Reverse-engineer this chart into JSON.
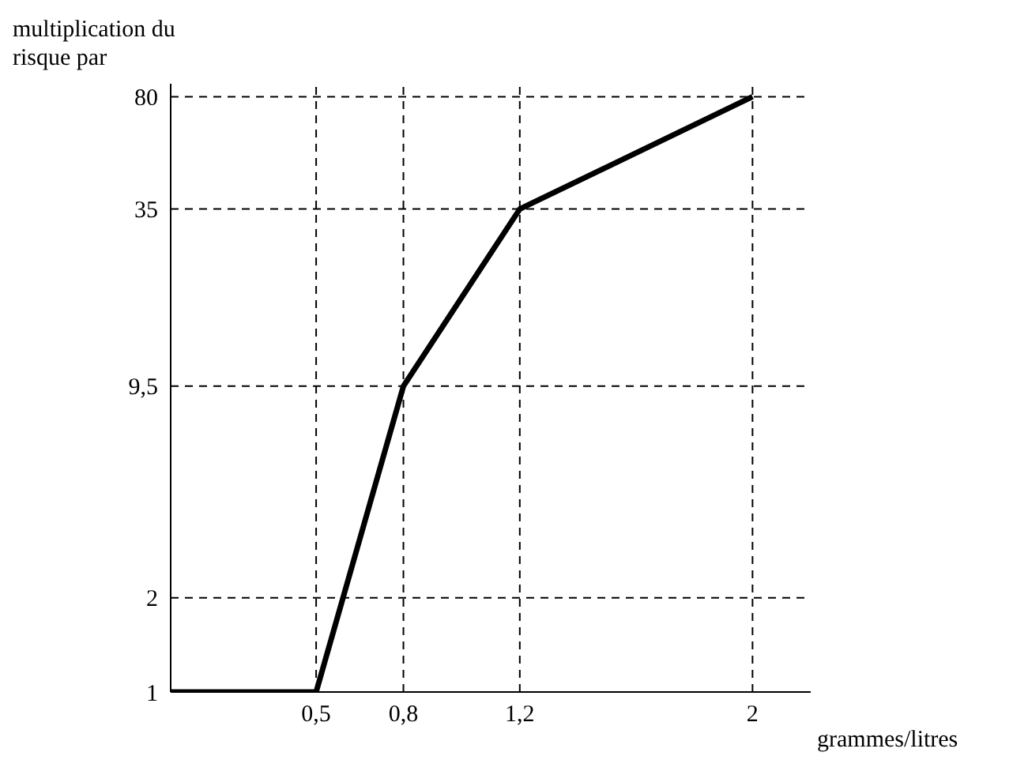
{
  "chart_data": {
    "type": "line",
    "ylabel": "multiplication du risque par",
    "xlabel": "grammes/litres",
    "x": [
      0,
      0.5,
      0.8,
      1.2,
      2
    ],
    "series": [
      {
        "color": "#000000",
        "values": [
          1,
          1,
          9.5,
          35,
          80
        ]
      }
    ],
    "xlim": [
      0,
      2.2
    ],
    "ylim": [
      1,
      88
    ],
    "xticks": [
      {
        "value": 0.5,
        "label": "0,5"
      },
      {
        "value": 0.8,
        "label": "0,8"
      },
      {
        "value": 1.2,
        "label": "1,2"
      },
      2
    ],
    "yticks": [
      1,
      2,
      {
        "value": 9.5,
        "label": "9,5"
      },
      35,
      80
    ],
    "ref_lines": [
      {
        "axis": "y",
        "value": 2,
        "line_style": "dashed"
      },
      {
        "axis": "y",
        "value": 9.5,
        "line_style": "dashed"
      },
      {
        "axis": "y",
        "value": 35,
        "line_style": "dashed"
      },
      {
        "axis": "y",
        "value": 80,
        "line_style": "dashed"
      },
      {
        "axis": "x",
        "value": 0.5,
        "line_style": "dashed"
      },
      {
        "axis": "x",
        "value": 0.8,
        "line_style": "dashed"
      },
      {
        "axis": "x",
        "value": 1.2,
        "line_style": "dashed"
      },
      {
        "axis": "x",
        "value": 2,
        "line_style": "dashed"
      }
    ],
    "log": "y",
    "grid": false,
    "legend": false,
    "marker": "none",
    "line_style": "solid"
  }
}
